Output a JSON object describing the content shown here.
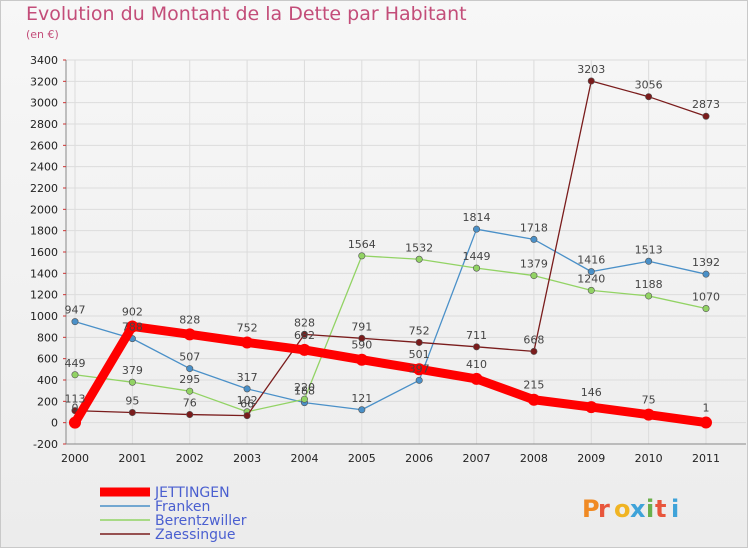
{
  "title": "Evolution du Montant de la Dette par Habitant",
  "subtitle": "(en €)",
  "watermark": "Proxiti",
  "chart_data": {
    "type": "line",
    "title": "Evolution du Montant de la Dette par Habitant",
    "subtitle": "(en €)",
    "xlabel": "",
    "ylabel": "",
    "x": [
      "2000",
      "2001",
      "2002",
      "2003",
      "2004",
      "2005",
      "2006",
      "2007",
      "2008",
      "2009",
      "2010",
      "2011"
    ],
    "ylim": [
      -200,
      3400
    ],
    "yticks": [
      -200,
      0,
      200,
      400,
      600,
      800,
      1000,
      1200,
      1400,
      1600,
      1800,
      2000,
      2200,
      2400,
      2600,
      2800,
      3000,
      3200,
      3400
    ],
    "grid": true,
    "legend_position": "bottom-left",
    "series": [
      {
        "name": "JETTINGEN",
        "color": "#ff0000",
        "values": [
          0,
          902,
          828,
          752,
          682,
          590,
          501,
          410,
          215,
          146,
          75,
          1
        ]
      },
      {
        "name": "Franken",
        "color": "#4a90c8",
        "values": [
          947,
          788,
          507,
          317,
          188,
          121,
          397,
          1814,
          1718,
          1416,
          1513,
          1392
        ]
      },
      {
        "name": "Berentzwiller",
        "color": "#92d364",
        "values": [
          449,
          379,
          295,
          102,
          220,
          1564,
          1532,
          1449,
          1379,
          1240,
          1188,
          1070
        ]
      },
      {
        "name": "Zaessingue",
        "color": "#7a1c1c",
        "values": [
          113,
          95,
          76,
          66,
          828,
          791,
          752,
          711,
          668,
          3203,
          3056,
          2873
        ]
      }
    ]
  }
}
